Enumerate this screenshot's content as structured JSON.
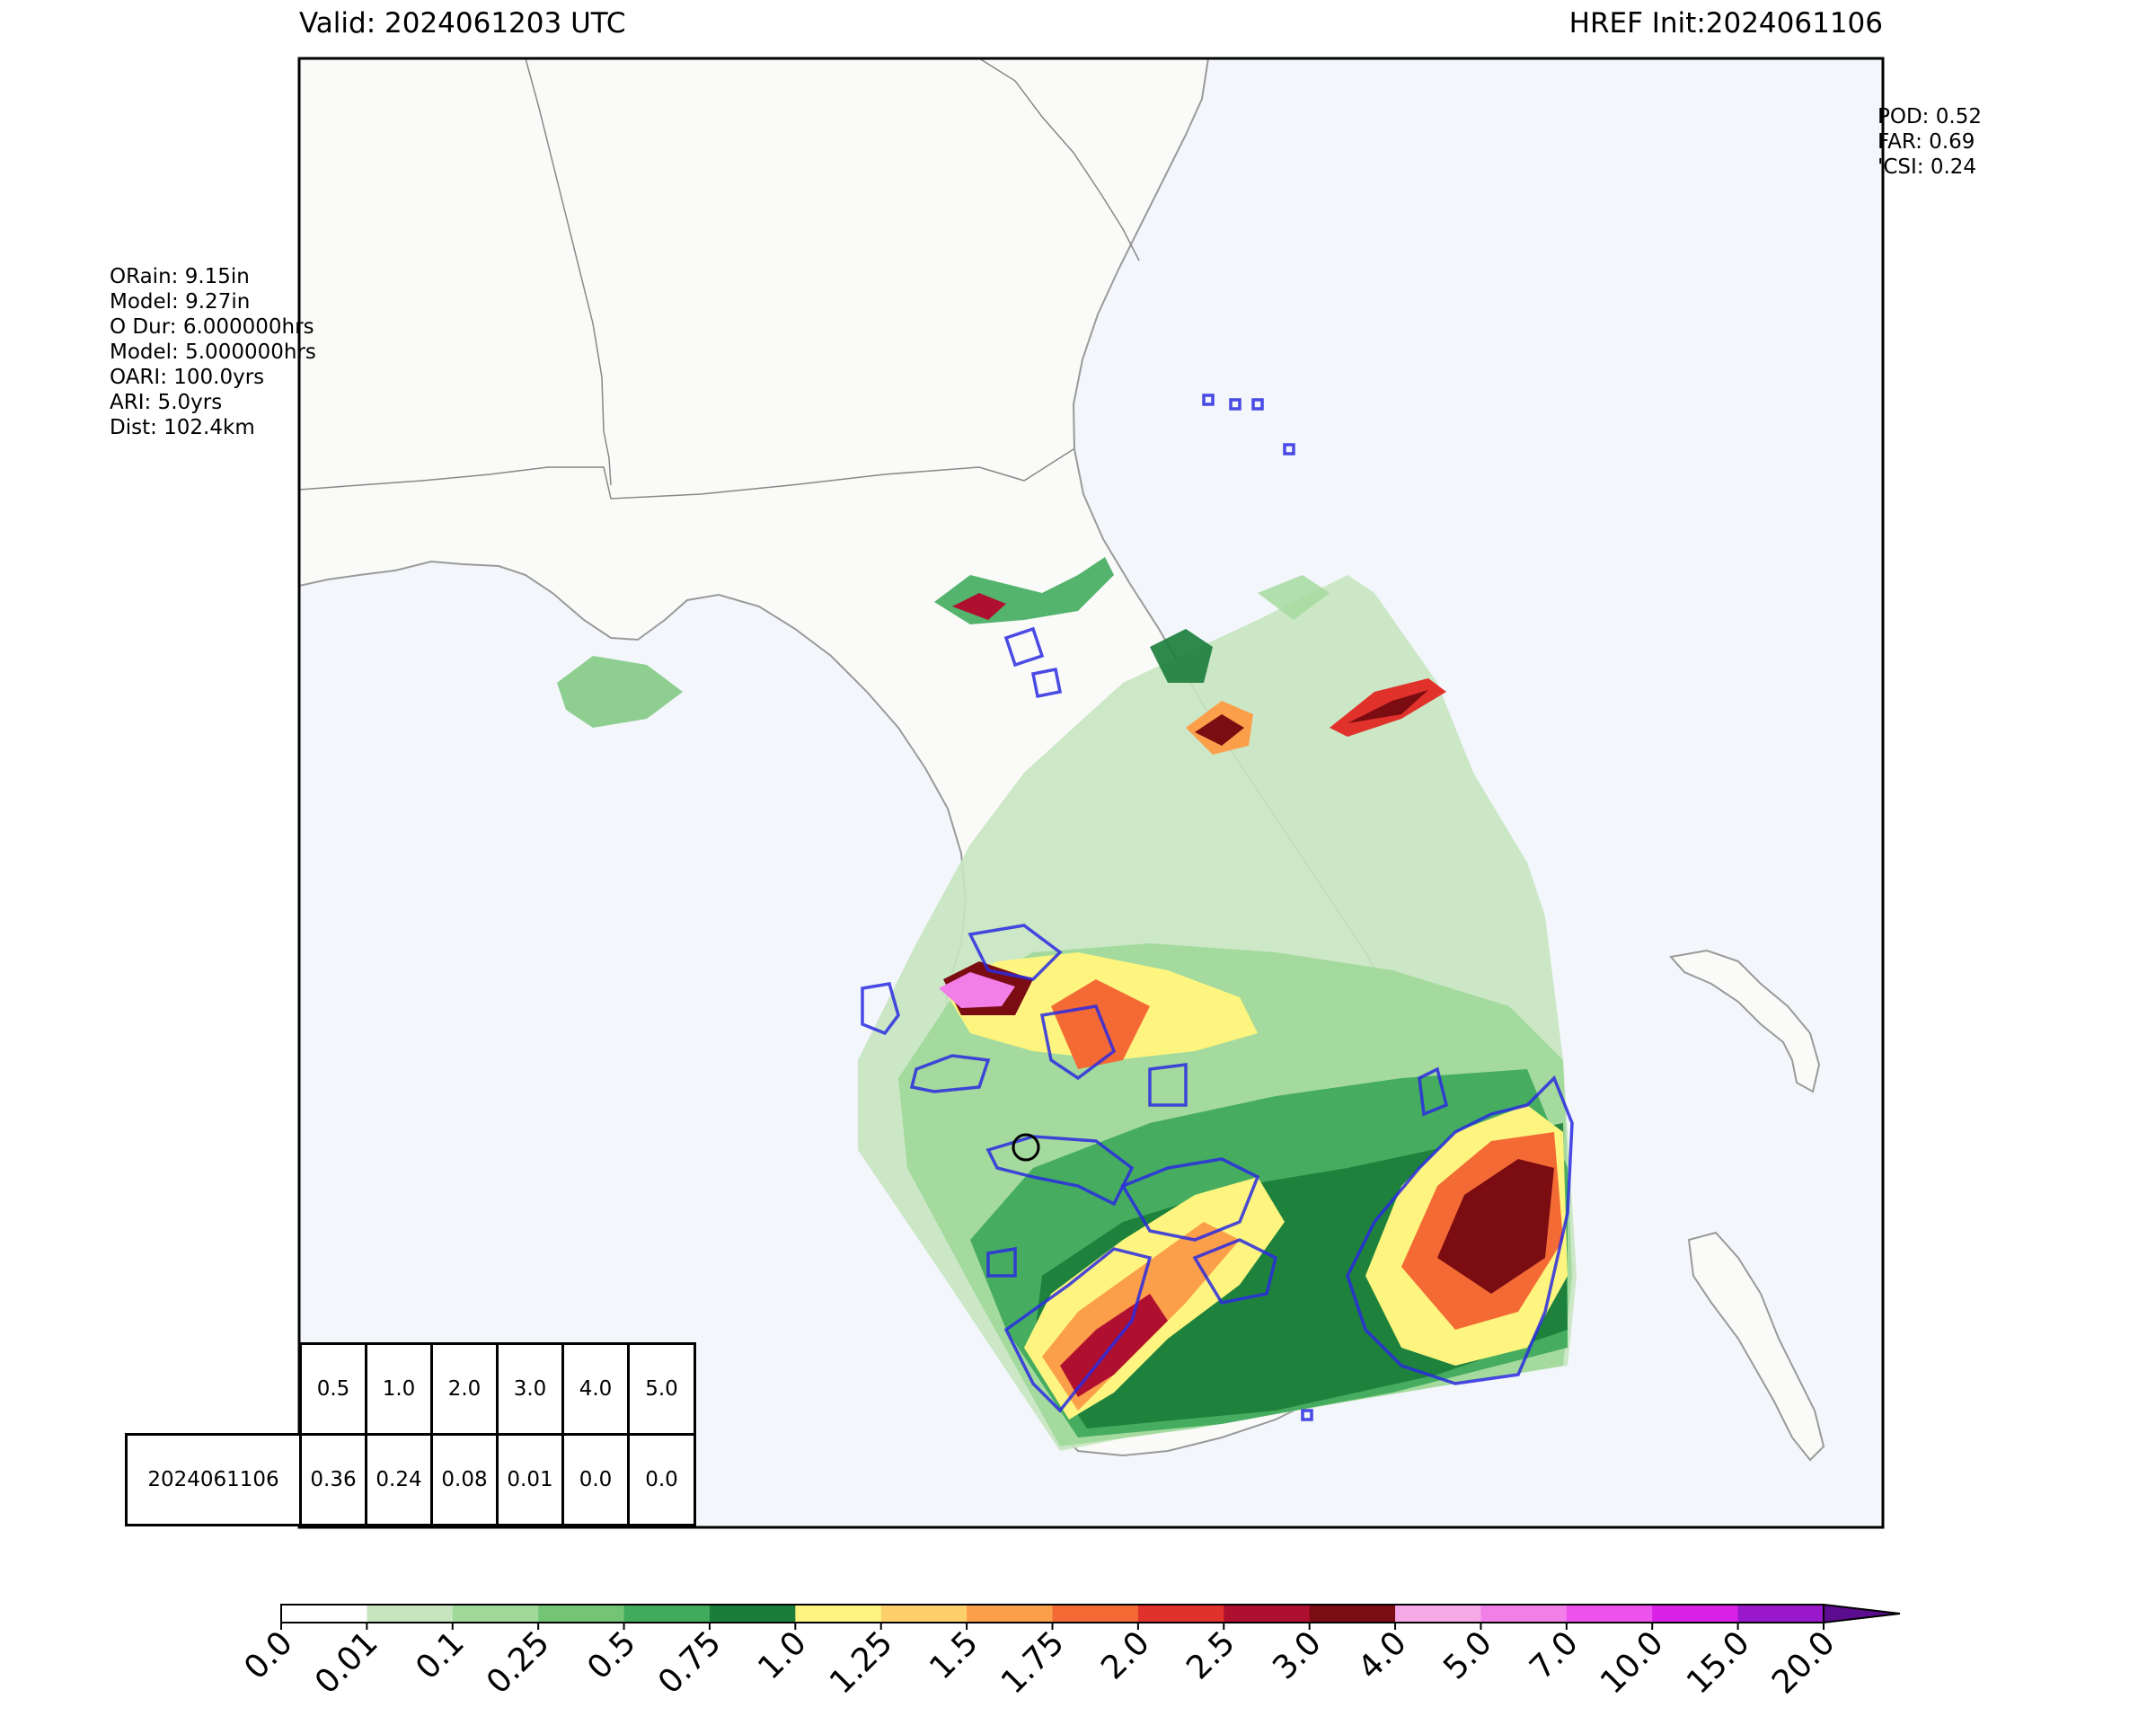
{
  "header": {
    "valid": "Valid: 2024061203 UTC",
    "init": "HREF Init:2024061106"
  },
  "left_stats": [
    "ORain: 9.15in",
    "Model: 9.27in",
    "O Dur: 6.000000hrs",
    "Model: 5.000000hrs",
    "OARI: 100.0yrs",
    "ARI: 5.0yrs",
    "Dist: 102.4km"
  ],
  "right_stats": [
    "POD: 0.52",
    "FAR: 0.69",
    "'CSI: 0.24"
  ],
  "threshold_table": {
    "headers": [
      "0.5",
      "1.0",
      "2.0",
      "3.0",
      "4.0",
      "5.0"
    ],
    "row_label": "2024061106",
    "values": [
      "0.36",
      "0.24",
      "0.08",
      "0.01",
      "0.0",
      "0.0"
    ]
  },
  "colorbar": {
    "ticks": [
      "0.0",
      "0.01",
      "0.1",
      "0.25",
      "0.5",
      "0.75",
      "1.0",
      "1.25",
      "1.5",
      "1.75",
      "2.0",
      "2.5",
      "3.0",
      "4.0",
      "5.0",
      "7.0",
      "10.0",
      "15.0",
      "20.0"
    ],
    "colors": [
      "#ffffff",
      "#c7e6c0",
      "#a1d99b",
      "#74c476",
      "#41ab5d",
      "#1a7d3a",
      "#fdf57f",
      "#fdd06b",
      "#fc9f4a",
      "#f46a35",
      "#e0312a",
      "#b01030",
      "#7a0c12",
      "#f7a8e6",
      "#f27ee8",
      "#ee52ec",
      "#da1fe6",
      "#9a18cc"
    ],
    "extend_color": "#5c0c8e"
  },
  "colors": {
    "ocean": "#f3f6fb",
    "land": "#fafaf8",
    "contour": "#2a2ae0",
    "coast": "#9a9a9a"
  }
}
